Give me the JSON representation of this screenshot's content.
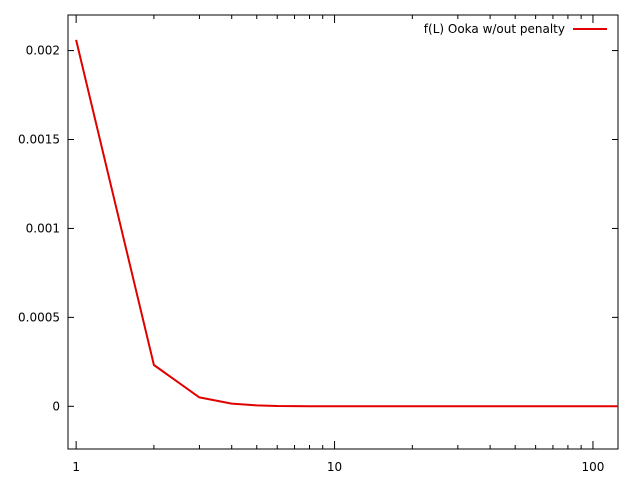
{
  "chart_data": {
    "type": "line",
    "title": "",
    "xlabel": "",
    "ylabel": "",
    "xscale": "log",
    "xlim": [
      0.93,
      125
    ],
    "ylim": [
      -0.00024,
      0.0022
    ],
    "grid": false,
    "legend_position": "top-right",
    "x_ticks": [
      {
        "value": 1,
        "label": "1"
      },
      {
        "value": 10,
        "label": "10"
      },
      {
        "value": 100,
        "label": "100"
      }
    ],
    "y_ticks": [
      {
        "value": 0,
        "label": "0"
      },
      {
        "value": 0.0005,
        "label": "0.0005"
      },
      {
        "value": 0.001,
        "label": "0.001"
      },
      {
        "value": 0.0015,
        "label": "0.0015"
      },
      {
        "value": 0.002,
        "label": "0.002"
      }
    ],
    "series": [
      {
        "name": "f(L) Ooka w/out penalty",
        "color": "#e00000",
        "x": [
          1,
          2,
          3,
          4,
          5,
          6,
          7,
          8,
          10,
          20,
          50,
          125
        ],
        "y": [
          0.00206,
          0.000232,
          5e-05,
          1.5e-05,
          5e-06,
          2e-06,
          1e-06,
          0,
          0,
          0,
          0,
          0
        ]
      }
    ]
  }
}
